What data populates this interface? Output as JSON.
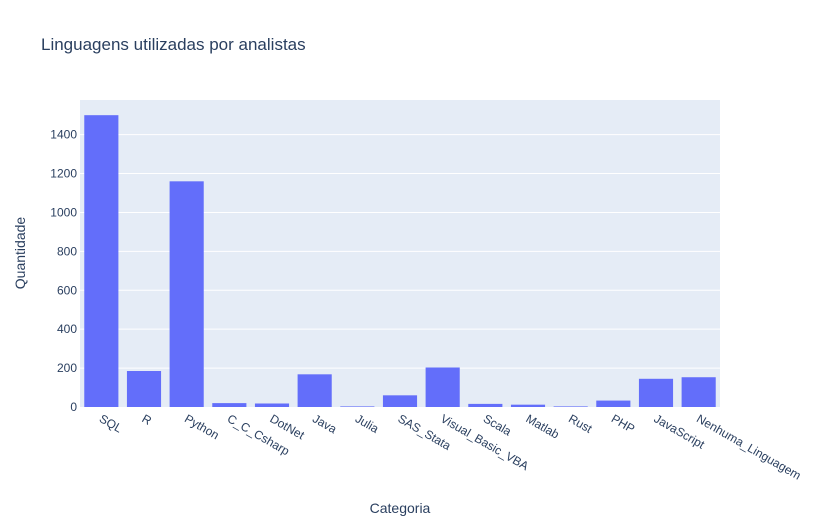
{
  "chart_data": {
    "type": "bar",
    "title": "Linguagens utilizadas por analistas",
    "xlabel": "Categoria",
    "ylabel": "Quantidade",
    "categories": [
      "SQL",
      "R",
      "Python",
      "C_C_Csharp",
      "DotNet",
      "Java",
      "Julia",
      "SAS_Stata",
      "Visual_Basic_VBA",
      "Scala",
      "Matlab",
      "Rust",
      "PHP",
      "JavaScript",
      "Nenhuma_Linguagem"
    ],
    "values": [
      1500,
      185,
      1160,
      20,
      18,
      168,
      3,
      60,
      203,
      16,
      12,
      3,
      33,
      145,
      153
    ],
    "ylim": [
      0,
      1578
    ],
    "yticks": [
      0,
      200,
      400,
      600,
      800,
      1000,
      1200,
      1400
    ],
    "grid": true,
    "colors": {
      "bar": "#636efa",
      "plot_bg": "#e5ecf6",
      "grid": "#ffffff",
      "text": "#2a3f5f"
    }
  }
}
